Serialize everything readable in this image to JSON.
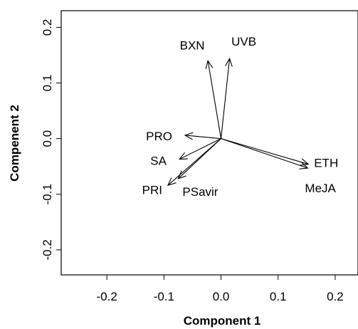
{
  "chart_data": {
    "type": "scatter",
    "subtype": "biplot-loadings",
    "title": "",
    "xlabel": "Component 1",
    "ylabel": "Compenent 2",
    "xlim": [
      -0.28,
      0.24
    ],
    "ylim": [
      -0.245,
      0.23
    ],
    "grid": false,
    "legend": "none",
    "x_ticks": [
      -0.2,
      -0.1,
      0.0,
      0.1,
      0.2
    ],
    "x_tick_labels": [
      "-0.2",
      "-0.1",
      "0.0",
      "0.1",
      "0.2"
    ],
    "y_ticks": [
      -0.2,
      -0.1,
      0.0,
      0.1,
      0.2
    ],
    "y_tick_labels": [
      "-0.2",
      "-0.1",
      "0.0",
      "0.1",
      "0.2"
    ],
    "origin": [
      0,
      0
    ],
    "vectors": [
      {
        "label": "BXN",
        "x": -0.023,
        "y": 0.14
      },
      {
        "label": "UVB",
        "x": 0.015,
        "y": 0.144
      },
      {
        "label": "PRO",
        "x": -0.063,
        "y": 0.006
      },
      {
        "label": "SA",
        "x": -0.073,
        "y": -0.037
      },
      {
        "label": "PRI",
        "x": -0.093,
        "y": -0.084
      },
      {
        "label": "PSavir",
        "x": -0.075,
        "y": -0.072
      },
      {
        "label": "ETH",
        "x": 0.153,
        "y": -0.046
      },
      {
        "label": "MeJA",
        "x": 0.152,
        "y": -0.053
      }
    ],
    "colors": {
      "arrows": "#000000",
      "text": "#000000",
      "background": "#ffffff"
    }
  }
}
